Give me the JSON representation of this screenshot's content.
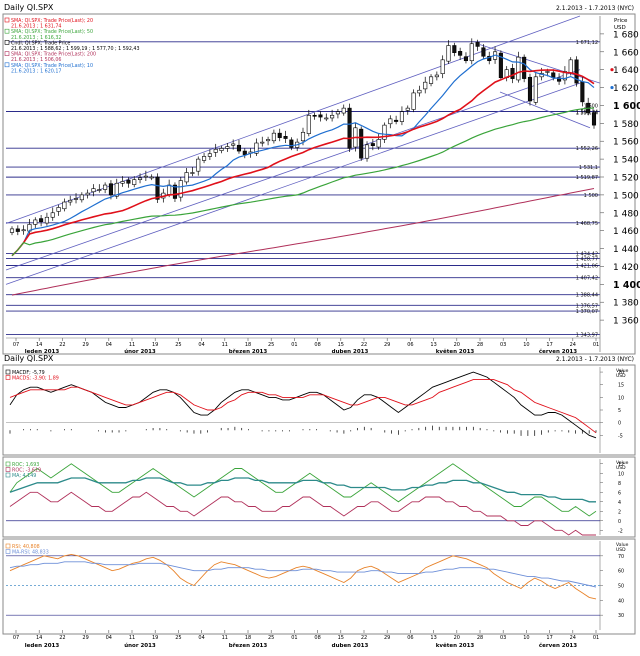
{
  "main_panel": {
    "title": "Daily QI.SPX",
    "date_range": "2.1.2013 - 1.7.2013 (NYC)",
    "axis_caption": "Price",
    "axis_unit": "USD",
    "legend": [
      {
        "text": "SMA; QI.SPX; Trade Price(Last); 20",
        "color": "#e0101a"
      },
      {
        "text": "21.6.2013 ; 1 631,74",
        "color": "#e0101a"
      },
      {
        "text": "SMA; QI.SPX; Trade Price(Last); 50",
        "color": "#3aa43a"
      },
      {
        "text": "21.6.2013 ; 1 616,32",
        "color": "#3aa43a"
      },
      {
        "text": "Cndl; QI.SPX; Trade Price",
        "color": "#000000"
      },
      {
        "text": "21.6.2013 ; 1 588,62 ; 1 599,19 ; 1 577,70 ; 1 592,43",
        "color": "#000000"
      },
      {
        "text": "SMA; QI.SPX; Trade Price(Last); 200",
        "color": "#b0305a"
      },
      {
        "text": "21.6.2013 ; 1 506,06",
        "color": "#b0305a"
      },
      {
        "text": "SMA; QI.SPX; Trade Price(Last); 10",
        "color": "#1f6fd0"
      },
      {
        "text": "21.6.2013 ; 1 620,17",
        "color": "#1f6fd0"
      }
    ]
  },
  "chart_data": [
    {
      "type": "candlestick",
      "title": "Daily QI.SPX",
      "ylim": [
        1340,
        1700
      ],
      "y_ticks": [
        1360,
        1380,
        1400,
        1420,
        1440,
        1460,
        1480,
        1500,
        1520,
        1540,
        1560,
        1580,
        1600,
        1620,
        1640,
        1660,
        1680
      ],
      "x_tick_labels": [
        "07",
        "14",
        "22",
        "29",
        "04",
        "11",
        "19",
        "25",
        "04",
        "11",
        "18",
        "25",
        "01",
        "08",
        "15",
        "22",
        "29",
        "06",
        "13",
        "20",
        "28",
        "03",
        "10",
        "17",
        "24",
        "01"
      ],
      "month_labels": [
        "leden 2013",
        "únor 2013",
        "březen 2013",
        "duben 2013",
        "květen 2013",
        "červen 2013"
      ],
      "closes": [
        1462,
        1459,
        1461,
        1467,
        1472,
        1470,
        1475,
        1480,
        1486,
        1492,
        1494,
        1496,
        1500,
        1502,
        1507,
        1506,
        1511,
        1500,
        1513,
        1515,
        1513,
        1517,
        1519,
        1521,
        1520,
        1495,
        1502,
        1511,
        1496,
        1516,
        1525,
        1525,
        1540,
        1543,
        1546,
        1551,
        1552,
        1554,
        1557,
        1549,
        1545,
        1548,
        1558,
        1559,
        1562,
        1569,
        1564,
        1563,
        1553,
        1559,
        1570,
        1589,
        1588,
        1587,
        1586,
        1589,
        1593,
        1597,
        1552,
        1575,
        1541,
        1556,
        1555,
        1562,
        1578,
        1585,
        1582,
        1593,
        1597,
        1614,
        1617,
        1626,
        1632,
        1634,
        1651,
        1667,
        1659,
        1656,
        1650,
        1669,
        1666,
        1655,
        1650,
        1660,
        1631,
        1640,
        1630,
        1654,
        1630,
        1605,
        1632,
        1636,
        1638,
        1631,
        1627,
        1638,
        1651,
        1625,
        1604,
        1592,
        1578
      ],
      "horizontal_levels": [
        "1 671,12",
        "1 593,24",
        "1 552,26",
        "1 531,1",
        "1 519,87",
        "1 500",
        "1 468,75",
        "1 434,42",
        "1 428,77",
        "1 421,06",
        "1 407,42",
        "1 388,44",
        "1 376,57",
        "1 370,07",
        "1 343,97"
      ],
      "current_price_labels": [
        "1 600",
        "1 593,24"
      ],
      "series": [
        {
          "name": "SMA 10",
          "color": "#1f6fd0"
        },
        {
          "name": "SMA 20",
          "color": "#e0101a"
        },
        {
          "name": "SMA 50",
          "color": "#3aa43a"
        },
        {
          "name": "SMA 200",
          "color": "#b0305a"
        }
      ]
    },
    {
      "type": "line",
      "title": "Daily QI.SPX",
      "date_range": "2.1.2013 - 1.7.2013 (NYC)",
      "axis_unit": "USD",
      "ylim": [
        -12,
        22
      ],
      "y_ticks": [
        -5,
        0,
        5,
        10,
        15,
        20
      ],
      "legend": [
        {
          "text": "MACDF; -5,79",
          "color": "#000000"
        },
        {
          "text": "MACDS; -3,90; 1,89",
          "color": "#e0101a"
        }
      ],
      "series": [
        {
          "name": "MACDF",
          "color": "#000000",
          "values": [
            7,
            11,
            13,
            14,
            14,
            13,
            12,
            13,
            14,
            15,
            14,
            13,
            12,
            10,
            8,
            7,
            6,
            6,
            7,
            8,
            10,
            12,
            13,
            13,
            12,
            10,
            7,
            4,
            3,
            3,
            5,
            8,
            10,
            12,
            13,
            13,
            12,
            11,
            10,
            10,
            9,
            9,
            10,
            11,
            12,
            12,
            11,
            9,
            7,
            5,
            6,
            9,
            11,
            11,
            10,
            8,
            6,
            4,
            6,
            8,
            10,
            12,
            14,
            15,
            16,
            17,
            18,
            19,
            20,
            19,
            18,
            16,
            14,
            12,
            10,
            7,
            5,
            3,
            3,
            4,
            4,
            3,
            1,
            -1,
            -3,
            -5,
            -6
          ]
        },
        {
          "name": "MACDS",
          "color": "#e0101a",
          "values": [
            10,
            11,
            12,
            13,
            13,
            13,
            13,
            13,
            13,
            14,
            14,
            13,
            12,
            11,
            10,
            9,
            8,
            7,
            7,
            8,
            9,
            10,
            11,
            12,
            12,
            11,
            9,
            7,
            6,
            5,
            5,
            6,
            8,
            9,
            11,
            12,
            12,
            12,
            11,
            11,
            10,
            10,
            10,
            10,
            11,
            11,
            11,
            10,
            9,
            8,
            7,
            7,
            8,
            9,
            10,
            10,
            9,
            8,
            7,
            7,
            8,
            9,
            10,
            12,
            13,
            14,
            15,
            16,
            17,
            17,
            17,
            17,
            16,
            15,
            13,
            12,
            10,
            8,
            7,
            6,
            5,
            4,
            3,
            2,
            0,
            -2,
            -4
          ]
        }
      ]
    },
    {
      "type": "line",
      "axis_unit": "USD",
      "ylim": [
        -3,
        13
      ],
      "y_ticks": [
        -2,
        0,
        2,
        4,
        6,
        8,
        10,
        12
      ],
      "legend": [
        {
          "text": "ROC; 1,693",
          "color": "#3aa43a"
        },
        {
          "text": "ROC; -3,619",
          "color": "#b0305a"
        },
        {
          "text": "MA; 4,149",
          "color": "#2c8a8a"
        }
      ],
      "series": [
        {
          "name": "ROC",
          "color": "#3aa43a",
          "values": [
            6,
            8,
            9,
            10,
            11,
            10,
            9,
            10,
            11,
            12,
            11,
            10,
            9,
            8,
            7,
            6,
            6,
            7,
            8,
            9,
            10,
            11,
            10,
            9,
            8,
            7,
            6,
            5,
            6,
            7,
            8,
            9,
            10,
            11,
            11,
            10,
            9,
            8,
            7,
            6,
            6,
            7,
            8,
            9,
            10,
            9,
            8,
            7,
            6,
            5,
            5,
            6,
            7,
            8,
            7,
            6,
            5,
            4,
            5,
            6,
            7,
            8,
            9,
            10,
            11,
            12,
            11,
            10,
            9,
            8,
            7,
            6,
            5,
            4,
            3,
            3,
            4,
            5,
            5,
            4,
            3,
            2,
            2,
            3,
            2,
            1,
            2
          ]
        },
        {
          "name": "ROC",
          "color": "#b0305a",
          "values": [
            3,
            4,
            5,
            6,
            6,
            5,
            4,
            4,
            5,
            6,
            5,
            4,
            3,
            3,
            2,
            2,
            3,
            4,
            5,
            5,
            6,
            5,
            4,
            3,
            3,
            2,
            2,
            1,
            2,
            3,
            4,
            5,
            5,
            4,
            4,
            3,
            3,
            2,
            2,
            2,
            3,
            3,
            4,
            5,
            5,
            4,
            3,
            3,
            2,
            1,
            2,
            3,
            3,
            4,
            4,
            3,
            2,
            2,
            3,
            4,
            4,
            5,
            5,
            5,
            4,
            4,
            3,
            3,
            2,
            2,
            1,
            1,
            1,
            0,
            0,
            -1,
            -1,
            0,
            0,
            -1,
            -2,
            -2,
            -3,
            -2,
            -3,
            -3,
            -3
          ]
        },
        {
          "name": "MA",
          "color": "#2c8a8a",
          "values": [
            6,
            6.5,
            7,
            7.5,
            8,
            8,
            8,
            8,
            8.5,
            9,
            9,
            9,
            8.5,
            8,
            8,
            8,
            8,
            8,
            8.5,
            8.5,
            9,
            9,
            9,
            8.5,
            8,
            8,
            7.5,
            7.5,
            7.5,
            8,
            8,
            8.5,
            8.5,
            9,
            9,
            9,
            8.5,
            8.5,
            8,
            8,
            8,
            8,
            8,
            8.5,
            8.5,
            8.5,
            8,
            8,
            7.5,
            7.5,
            7,
            7,
            7,
            7,
            7,
            7,
            6.5,
            6.5,
            6.5,
            7,
            7,
            7.5,
            7.5,
            8,
            8,
            8.5,
            8.5,
            8.5,
            8,
            8,
            7.5,
            7,
            6.5,
            6,
            6,
            5.5,
            5.5,
            5.5,
            5.5,
            5,
            5,
            4.5,
            4.5,
            4.5,
            4.5,
            4,
            4
          ]
        }
      ]
    },
    {
      "type": "line",
      "axis_unit": "USD",
      "ylim": [
        20,
        80
      ],
      "y_ticks": [
        30,
        40,
        50,
        60,
        70
      ],
      "legend": [
        {
          "text": "RSI; 40,808",
          "color": "#e8832a"
        },
        {
          "text": "MA-RSI; 48,833",
          "color": "#6d8fd8"
        }
      ],
      "series": [
        {
          "name": "RSI",
          "color": "#e8832a",
          "values": [
            60,
            62,
            64,
            66,
            68,
            70,
            69,
            68,
            70,
            71,
            70,
            68,
            66,
            64,
            62,
            60,
            61,
            63,
            65,
            66,
            68,
            69,
            67,
            64,
            60,
            55,
            52,
            50,
            55,
            60,
            64,
            66,
            65,
            64,
            62,
            60,
            58,
            56,
            55,
            56,
            58,
            60,
            62,
            63,
            62,
            60,
            58,
            56,
            54,
            52,
            55,
            60,
            62,
            63,
            61,
            58,
            55,
            52,
            54,
            56,
            58,
            62,
            64,
            66,
            68,
            70,
            69,
            68,
            66,
            64,
            62,
            58,
            55,
            52,
            50,
            48,
            52,
            55,
            53,
            50,
            48,
            50,
            52,
            48,
            45,
            42,
            41
          ]
        },
        {
          "name": "MA-RSI",
          "color": "#6d8fd8",
          "values": [
            62,
            63,
            63,
            64,
            64,
            65,
            65,
            65,
            66,
            66,
            66,
            66,
            65,
            65,
            64,
            64,
            64,
            64,
            64,
            65,
            65,
            65,
            65,
            64,
            63,
            62,
            61,
            60,
            60,
            60,
            61,
            61,
            62,
            62,
            62,
            62,
            61,
            61,
            60,
            60,
            60,
            60,
            60,
            61,
            61,
            61,
            60,
            60,
            59,
            59,
            59,
            59,
            59,
            60,
            60,
            59,
            59,
            58,
            58,
            58,
            58,
            59,
            59,
            60,
            61,
            61,
            62,
            62,
            62,
            62,
            61,
            61,
            60,
            59,
            58,
            57,
            56,
            56,
            55,
            55,
            54,
            53,
            53,
            52,
            51,
            50,
            49
          ]
        }
      ],
      "reference_levels": [
        50
      ]
    }
  ]
}
